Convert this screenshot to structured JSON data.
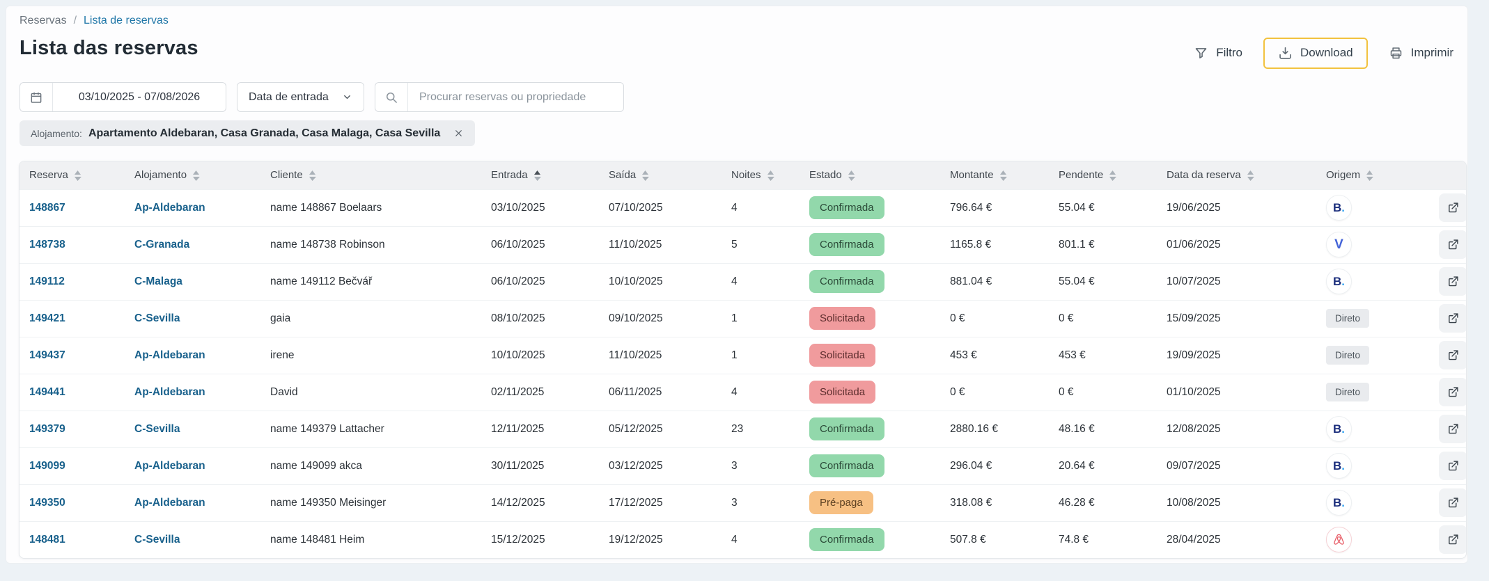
{
  "breadcrumb": {
    "home": "Reservas",
    "separator": "/",
    "current": "Lista de reservas"
  },
  "page_title": "Lista das reservas",
  "toolbar": {
    "filter": "Filtro",
    "download": "Download",
    "print": "Imprimir"
  },
  "filters": {
    "date_range": "03/10/2025 - 07/08/2026",
    "date_type": "Data de entrada",
    "search_placeholder": "Procurar reservas ou propriedade"
  },
  "property_tag": {
    "label": "Alojamento:",
    "value": "Apartamento Aldebaran, Casa Granada, Casa Malaga, Casa Sevilla"
  },
  "table": {
    "columns": [
      {
        "label": "Reserva"
      },
      {
        "label": "Alojamento"
      },
      {
        "label": "Cliente"
      },
      {
        "label": "Entrada",
        "sorted": true
      },
      {
        "label": "Saída"
      },
      {
        "label": "Noites"
      },
      {
        "label": "Estado"
      },
      {
        "label": "Montante"
      },
      {
        "label": "Pendente"
      },
      {
        "label": "Data da reserva"
      },
      {
        "label": "Origem"
      },
      {
        "label": ""
      }
    ],
    "origin_icons": {
      "booking_letter": "B",
      "booking_dot": ".",
      "vrbo_letter": "V",
      "direct_label": "Direto"
    },
    "rows": [
      {
        "id": "148867",
        "property": "Ap-Aldebaran",
        "client": "name 148867 Boelaars",
        "checkin": "03/10/2025",
        "checkout": "07/10/2025",
        "nights": "4",
        "status": "Confirmada",
        "status_type": "confirmed",
        "amount": "796.64 €",
        "pending": "55.04 €",
        "booked": "19/06/2025",
        "origin": "booking"
      },
      {
        "id": "148738",
        "property": "C-Granada",
        "client": "name 148738 Robinson",
        "checkin": "06/10/2025",
        "checkout": "11/10/2025",
        "nights": "5",
        "status": "Confirmada",
        "status_type": "confirmed",
        "amount": "1165.8 €",
        "pending": "801.1 €",
        "booked": "01/06/2025",
        "origin": "vrbo"
      },
      {
        "id": "149112",
        "property": "C-Malaga",
        "client": "name 149112 Bečvář",
        "checkin": "06/10/2025",
        "checkout": "10/10/2025",
        "nights": "4",
        "status": "Confirmada",
        "status_type": "confirmed",
        "amount": "881.04 €",
        "pending": "55.04 €",
        "booked": "10/07/2025",
        "origin": "booking"
      },
      {
        "id": "149421",
        "property": "C-Sevilla",
        "client": "gaia",
        "checkin": "08/10/2025",
        "checkout": "09/10/2025",
        "nights": "1",
        "status": "Solicitada",
        "status_type": "requested",
        "amount": "0 €",
        "pending": "0 €",
        "booked": "15/09/2025",
        "origin": "direct"
      },
      {
        "id": "149437",
        "property": "Ap-Aldebaran",
        "client": "irene",
        "checkin": "10/10/2025",
        "checkout": "11/10/2025",
        "nights": "1",
        "status": "Solicitada",
        "status_type": "requested",
        "amount": "453 €",
        "pending": "453 €",
        "booked": "19/09/2025",
        "origin": "direct"
      },
      {
        "id": "149441",
        "property": "Ap-Aldebaran",
        "client": "David",
        "checkin": "02/11/2025",
        "checkout": "06/11/2025",
        "nights": "4",
        "status": "Solicitada",
        "status_type": "requested",
        "amount": "0 €",
        "pending": "0 €",
        "booked": "01/10/2025",
        "origin": "direct"
      },
      {
        "id": "149379",
        "property": "C-Sevilla",
        "client": "name 149379 Lattacher",
        "checkin": "12/11/2025",
        "checkout": "05/12/2025",
        "nights": "23",
        "status": "Confirmada",
        "status_type": "confirmed",
        "amount": "2880.16 €",
        "pending": "48.16 €",
        "booked": "12/08/2025",
        "origin": "booking"
      },
      {
        "id": "149099",
        "property": "Ap-Aldebaran",
        "client": "name 149099 akca",
        "checkin": "30/11/2025",
        "checkout": "03/12/2025",
        "nights": "3",
        "status": "Confirmada",
        "status_type": "confirmed",
        "amount": "296.04 €",
        "pending": "20.64 €",
        "booked": "09/07/2025",
        "origin": "booking"
      },
      {
        "id": "149350",
        "property": "Ap-Aldebaran",
        "client": "name 149350 Meisinger",
        "checkin": "14/12/2025",
        "checkout": "17/12/2025",
        "nights": "3",
        "status": "Pré-paga",
        "status_type": "prepaid",
        "amount": "318.08 €",
        "pending": "46.28 €",
        "booked": "10/08/2025",
        "origin": "booking"
      },
      {
        "id": "148481",
        "property": "C-Sevilla",
        "client": "name 148481 Heim",
        "checkin": "15/12/2025",
        "checkout": "19/12/2025",
        "nights": "4",
        "status": "Confirmada",
        "status_type": "confirmed",
        "amount": "507.8 €",
        "pending": "74.8 €",
        "booked": "28/04/2025",
        "origin": "airbnb"
      }
    ]
  },
  "colors": {
    "download_accent": "#F2C23E",
    "status_confirmed": "#92D8AB",
    "status_requested": "#F09B9D",
    "status_prepaid": "#F7C083",
    "link": "#19618C",
    "booking_navy": "#1C2F7D",
    "booking_dot_blue": "#35A3F0",
    "vrbo_blue": "#4565D8",
    "airbnb_red": "#E8606A"
  }
}
